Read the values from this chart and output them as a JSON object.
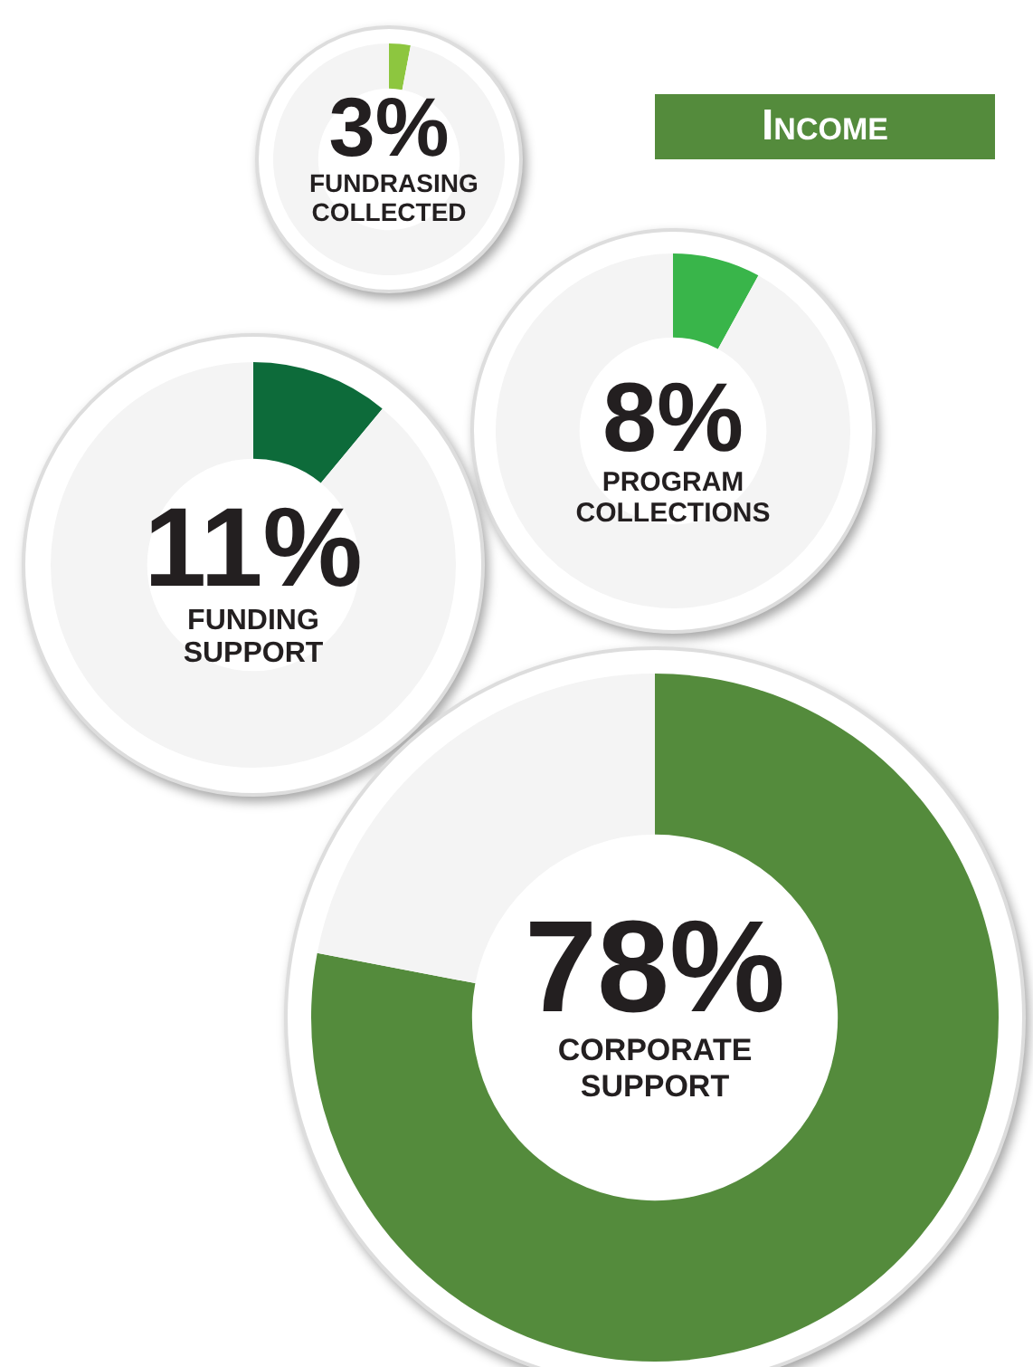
{
  "chart_data": [
    {
      "type": "donut",
      "title": "Income",
      "categories": [
        "FUNDRASING COLLECTED",
        null
      ],
      "values": [
        3,
        97
      ],
      "colors": [
        "#8dc63f",
        "#f4f4f4"
      ],
      "value_labels": [
        "3%",
        null
      ],
      "legend": false
    },
    {
      "type": "donut",
      "categories": [
        "PROGRAM COLLECTIONS",
        null
      ],
      "values": [
        8,
        92
      ],
      "colors": [
        "#39b54a",
        "#f4f4f4"
      ],
      "value_labels": [
        "8%",
        null
      ],
      "legend": false
    },
    {
      "type": "donut",
      "categories": [
        "FUNDING SUPPORT",
        null
      ],
      "values": [
        11,
        89
      ],
      "colors": [
        "#0d6b3a",
        "#f4f4f4"
      ],
      "value_labels": [
        "11%",
        null
      ],
      "legend": false
    },
    {
      "type": "donut",
      "categories": [
        "CORPORATE SUPPORT",
        null
      ],
      "values": [
        78,
        22
      ],
      "colors": [
        "#548b3c",
        "#f4f4f4"
      ],
      "value_labels": [
        "78%",
        null
      ],
      "legend": false
    }
  ]
}
